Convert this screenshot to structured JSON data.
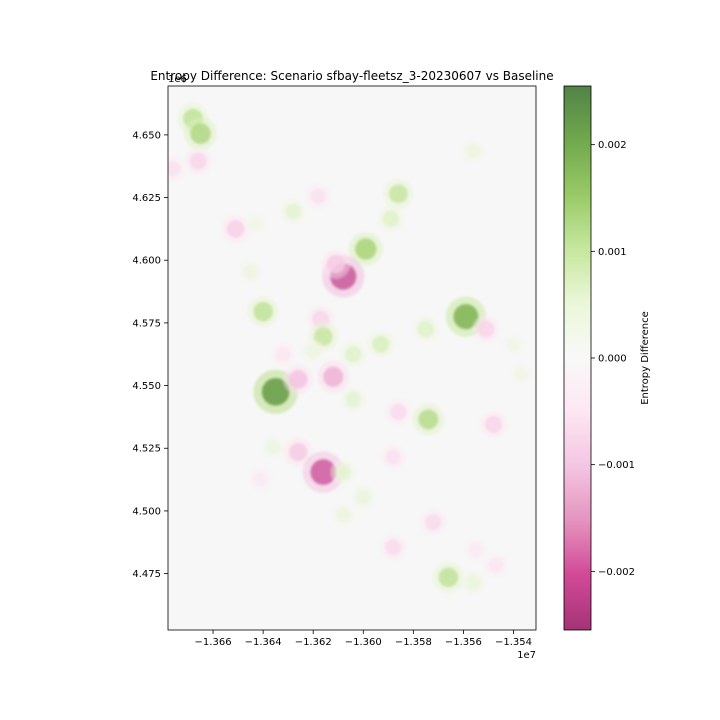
{
  "chart_data": {
    "type": "heatmap",
    "title": "Entropy Difference: Scenario sfbay-fleetsz_3-20230607 vs Baseline",
    "xlabel": "",
    "ylabel": "",
    "x_offset_label": "1e7",
    "y_offset_label": "1e6",
    "x_ticks": [
      -1.366,
      -1.364,
      -1.362,
      -1.36,
      -1.358,
      -1.356,
      -1.354
    ],
    "x_tick_labels": [
      "−1.366",
      "−1.364",
      "−1.362",
      "−1.360",
      "−1.358",
      "−1.356",
      "−1.354"
    ],
    "y_ticks": [
      4.475,
      4.5,
      4.525,
      4.55,
      4.575,
      4.6,
      4.625,
      4.65
    ],
    "y_tick_labels": [
      "4.475",
      "4.500",
      "4.525",
      "4.550",
      "4.575",
      "4.600",
      "4.625",
      "4.650"
    ],
    "xlim": [
      -1.3678,
      -1.3531
    ],
    "ylim": [
      4.4525,
      4.6695
    ],
    "colorbar": {
      "label": "Entropy Difference",
      "colormap": "PiYG",
      "range": [
        -0.00255,
        0.00255
      ],
      "ticks": [
        -0.002,
        -0.001,
        0.0,
        0.001,
        0.002
      ],
      "tick_labels": [
        "−0.002",
        "−0.001",
        "0.000",
        "0.001",
        "0.002"
      ]
    },
    "hotspots": [
      {
        "x": -1.3668,
        "y": 4.6565,
        "value": 0.0012
      },
      {
        "x": -1.3665,
        "y": 4.6505,
        "value": 0.0014
      },
      {
        "x": -1.3666,
        "y": 4.6395,
        "value": -0.0008
      },
      {
        "x": -1.3676,
        "y": 4.6365,
        "value": -0.0006
      },
      {
        "x": -1.3651,
        "y": 4.6125,
        "value": -0.0009
      },
      {
        "x": -1.3628,
        "y": 4.6195,
        "value": 0.0006
      },
      {
        "x": -1.3618,
        "y": 4.6255,
        "value": -0.0006
      },
      {
        "x": -1.3586,
        "y": 4.6265,
        "value": 0.0011
      },
      {
        "x": -1.3589,
        "y": 4.6165,
        "value": 0.0007
      },
      {
        "x": -1.3599,
        "y": 4.6045,
        "value": 0.0015
      },
      {
        "x": -1.3608,
        "y": 4.5935,
        "value": -0.0023
      },
      {
        "x": -1.3611,
        "y": 4.5985,
        "value": -0.001
      },
      {
        "x": -1.364,
        "y": 4.5795,
        "value": 0.0012
      },
      {
        "x": -1.3617,
        "y": 4.5765,
        "value": -0.0008
      },
      {
        "x": -1.3616,
        "y": 4.5695,
        "value": 0.0011
      },
      {
        "x": -1.3612,
        "y": 4.5535,
        "value": -0.0013
      },
      {
        "x": -1.3635,
        "y": 4.5475,
        "value": 0.0025
      },
      {
        "x": -1.3626,
        "y": 4.5525,
        "value": -0.0011
      },
      {
        "x": -1.3593,
        "y": 4.5665,
        "value": 0.0008
      },
      {
        "x": -1.3604,
        "y": 4.5625,
        "value": 0.0007
      },
      {
        "x": -1.3604,
        "y": 4.5445,
        "value": 0.0006
      },
      {
        "x": -1.3586,
        "y": 4.5395,
        "value": -0.0007
      },
      {
        "x": -1.3574,
        "y": 4.5365,
        "value": 0.0013
      },
      {
        "x": -1.3575,
        "y": 4.5725,
        "value": 0.0007
      },
      {
        "x": -1.3559,
        "y": 4.5775,
        "value": 0.0021
      },
      {
        "x": -1.3551,
        "y": 4.5725,
        "value": -0.0008
      },
      {
        "x": -1.3548,
        "y": 4.5345,
        "value": -0.0008
      },
      {
        "x": -1.3626,
        "y": 4.5235,
        "value": -0.001
      },
      {
        "x": -1.3616,
        "y": 4.5155,
        "value": -0.0022
      },
      {
        "x": -1.3608,
        "y": 4.5155,
        "value": 0.0006
      },
      {
        "x": -1.3588,
        "y": 4.5215,
        "value": -0.0006
      },
      {
        "x": -1.3572,
        "y": 4.4955,
        "value": -0.0007
      },
      {
        "x": -1.3588,
        "y": 4.4855,
        "value": -0.0007
      },
      {
        "x": -1.3566,
        "y": 4.4735,
        "value": 0.0012
      },
      {
        "x": -1.3556,
        "y": 4.4715,
        "value": 0.0005
      },
      {
        "x": -1.3547,
        "y": 4.4785,
        "value": -0.0005
      },
      {
        "x": -1.36,
        "y": 4.5055,
        "value": 0.0005
      },
      {
        "x": -1.3632,
        "y": 4.5625,
        "value": -0.0005
      },
      {
        "x": -1.362,
        "y": 4.5635,
        "value": 0.0004
      },
      {
        "x": -1.3556,
        "y": 4.6435,
        "value": 0.0004
      },
      {
        "x": -1.3643,
        "y": 4.6145,
        "value": 0.0003
      },
      {
        "x": -1.3636,
        "y": 4.5255,
        "value": 0.0004
      },
      {
        "x": -1.3641,
        "y": 4.5125,
        "value": -0.0004
      },
      {
        "x": -1.354,
        "y": 4.5665,
        "value": 0.0003
      },
      {
        "x": -1.3555,
        "y": 4.4845,
        "value": -0.0004
      },
      {
        "x": -1.3537,
        "y": 4.5545,
        "value": 0.0003
      },
      {
        "x": -1.3608,
        "y": 4.4985,
        "value": 0.0004
      },
      {
        "x": -1.3645,
        "y": 4.5955,
        "value": 0.0004
      }
    ]
  }
}
